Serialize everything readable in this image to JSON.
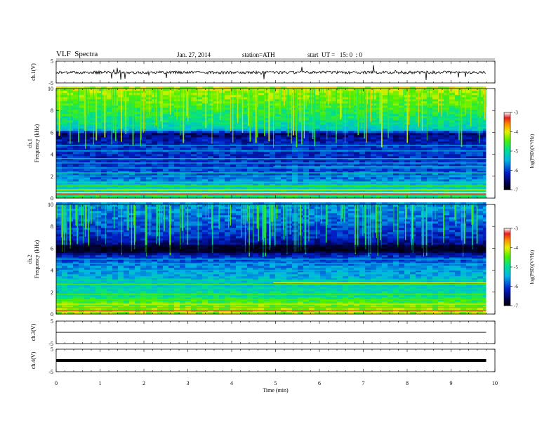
{
  "header": {
    "title": "VLF  Spectra",
    "date": "Jan. 27, 2014",
    "station": "station=ATH",
    "start": "start  UT =   15: 0  : 0"
  },
  "chart_data": [
    {
      "type": "line",
      "panel": "ch1",
      "ylabel": "ch.1(V)",
      "ylim": [
        -5,
        5
      ],
      "yticks": [
        "5",
        "-5"
      ],
      "xlim": [
        0,
        10
      ],
      "series": [
        {
          "x": [
            0,
            9.8
          ],
          "values": [
            -0.2,
            -0.2
          ]
        }
      ]
    },
    {
      "type": "heatmap",
      "panel": "ch1-spectrogram",
      "ylabel": "ch.1\nFrequency  (kHz)",
      "ylim": [
        0,
        10
      ],
      "yticks": [
        "0",
        "2",
        "4",
        "6",
        "8",
        "10"
      ],
      "xlim": [
        0,
        10
      ],
      "data_end_min": 9.8,
      "colorbar": {
        "label": "log(PSD)(V²/Hz)",
        "range": [
          -7,
          -3
        ],
        "ticks": [
          "-3",
          "-4",
          "-5",
          "-6",
          "-7"
        ]
      }
    },
    {
      "type": "heatmap",
      "panel": "ch2-spectrogram",
      "ylabel": "ch.2\nFrequency  (kHz)",
      "ylim": [
        0,
        10
      ],
      "yticks": [
        "0",
        "2",
        "4",
        "6",
        "8",
        "10"
      ],
      "xlim": [
        0,
        10
      ],
      "data_end_min": 9.8,
      "colorbar": {
        "label": "log(PSD)(V²/Hz)",
        "range": [
          -7,
          -3
        ],
        "ticks": [
          "-3",
          "-4",
          "-5",
          "-6",
          "-7"
        ]
      }
    },
    {
      "type": "line",
      "panel": "ch3",
      "ylabel": "ch.3(V)",
      "ylim": [
        -5,
        5
      ],
      "yticks": [
        "5",
        "-5"
      ],
      "xlim": [
        0,
        10
      ],
      "series": [
        {
          "x": [
            0,
            9.8
          ],
          "values": [
            0.0,
            0.0
          ]
        }
      ]
    },
    {
      "type": "line",
      "panel": "ch4",
      "ylabel": "ch.4(V)",
      "ylim": [
        -5,
        5
      ],
      "yticks": [
        "5",
        "-5"
      ],
      "xlim": [
        0,
        10
      ],
      "series": [
        {
          "x": [
            0,
            9.8
          ],
          "values": [
            0.0,
            0.0
          ]
        }
      ]
    }
  ],
  "xaxis": {
    "label": "Time  (min)",
    "ticks": [
      "0",
      "1",
      "2",
      "3",
      "4",
      "5",
      "6",
      "7",
      "8",
      "9",
      "10"
    ]
  }
}
